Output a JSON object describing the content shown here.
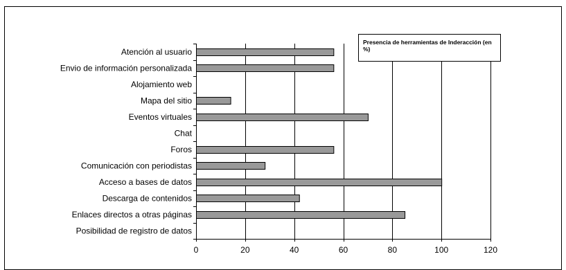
{
  "chart_data": {
    "type": "bar",
    "orientation": "horizontal",
    "title": "Presencia de herramientas de Inderacción (en %)",
    "categories": [
      "Atención al usuario",
      "Envio de información personalizada",
      "Alojamiento web",
      "Mapa del sitio",
      "Eventos virtuales",
      "Chat",
      "Foros",
      "Comunicación con periodistas",
      "Acceso a bases de datos",
      "Descarga de contenidos",
      "Enlaces directos a otras páginas",
      "Posibilidad de registro de datos"
    ],
    "values": [
      56,
      56,
      0,
      14,
      70,
      0,
      56,
      28,
      100,
      42,
      85,
      0
    ],
    "xlim": [
      0,
      120
    ],
    "xticks": [
      0,
      20,
      40,
      60,
      80,
      100,
      120
    ],
    "grid": "vertical",
    "legend_position": "top-right",
    "bar_color": "#999999",
    "bar_edge_color": "#000000",
    "grid_color": "#000000"
  }
}
